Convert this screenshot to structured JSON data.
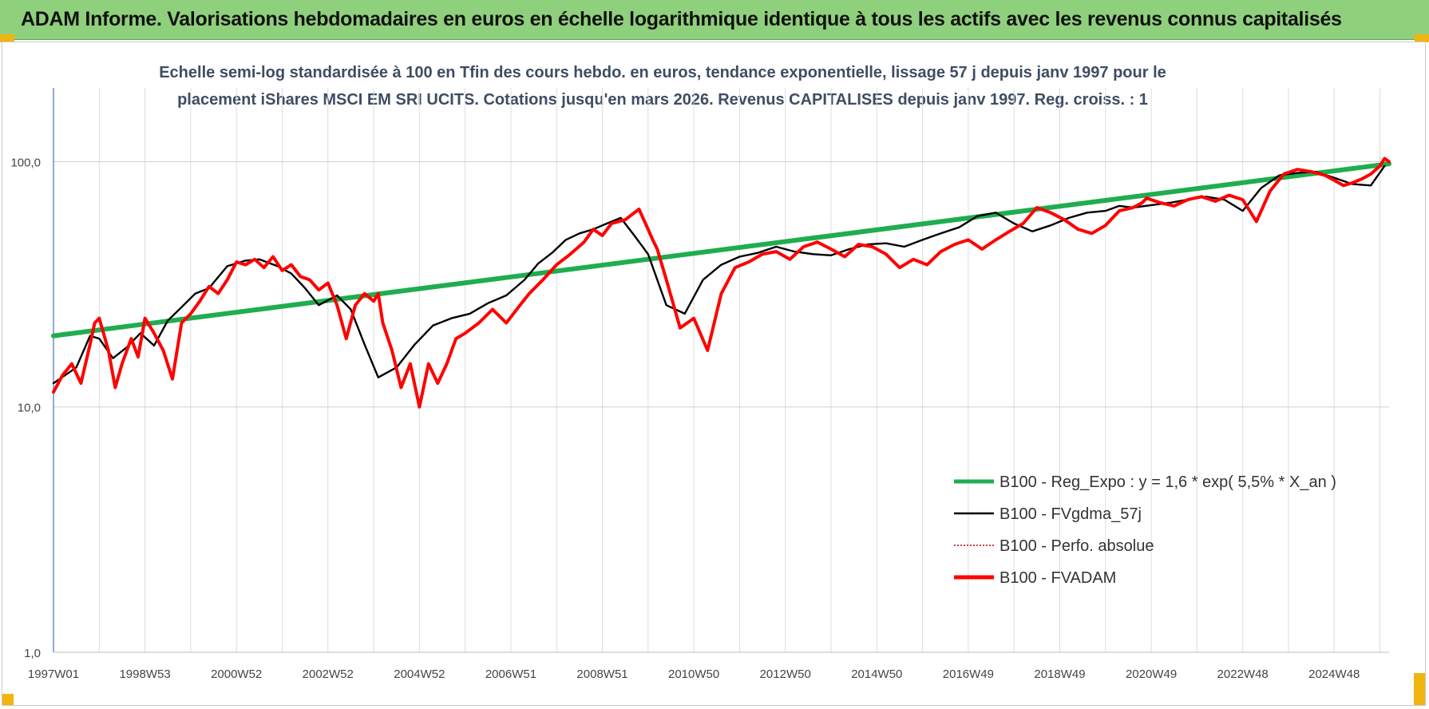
{
  "header": {
    "title": "ADAM Informe. Valorisations hebdomadaires en euros en échelle logarithmique identique à tous les actifs avec les revenus connus capitalisés"
  },
  "chart_data": {
    "type": "line",
    "subtitle_lines": [
      "Echelle semi-log standardisée à 100 en Tfin des cours hebdo. en euros, tendance exponentielle, lissage 57 j depuis janv 1997 pour le",
      "placement iShares MSCI EM SRI UCITS.  Cotations jusqu'en mars 2026. Revenus CAPITALISES depuis janv 1997. Reg. croiss. : 1"
    ],
    "x_axis": {
      "start": 1997.0,
      "end": 2026.2,
      "ticks": [
        {
          "label": "1997W01",
          "x": 1997.0
        },
        {
          "label": "1998W53",
          "x": 1999.0
        },
        {
          "label": "2000W52",
          "x": 2001.0
        },
        {
          "label": "2002W52",
          "x": 2003.0
        },
        {
          "label": "2004W52",
          "x": 2005.0
        },
        {
          "label": "2006W51",
          "x": 2007.0
        },
        {
          "label": "2008W51",
          "x": 2009.0
        },
        {
          "label": "2010W50",
          "x": 2011.0
        },
        {
          "label": "2012W50",
          "x": 2013.0
        },
        {
          "label": "2014W50",
          "x": 2015.0
        },
        {
          "label": "2016W49",
          "x": 2017.0
        },
        {
          "label": "2018W49",
          "x": 2019.0
        },
        {
          "label": "2020W49",
          "x": 2021.0
        },
        {
          "label": "2022W48",
          "x": 2023.0
        },
        {
          "label": "2024W48",
          "x": 2025.0
        }
      ]
    },
    "y_axis": {
      "scale": "log",
      "ylim": [
        1,
        200
      ],
      "ticks": [
        {
          "label": "1,0",
          "value": 1
        },
        {
          "label": "10,0",
          "value": 10
        },
        {
          "label": "100,0",
          "value": 100
        }
      ],
      "grid": true
    },
    "legend": {
      "placement": "bottom-right",
      "entries": [
        {
          "label": "B100 - Reg_Expo : y = 1,6 * exp( 5,5% *  X_an )",
          "color": "#1fad4f",
          "style": "solid-thick"
        },
        {
          "label": "B100 - FVgdma_57j",
          "color": "#000000",
          "style": "solid"
        },
        {
          "label": "B100 - Perfo. absolue",
          "color": "#c00000",
          "style": "dotted"
        },
        {
          "label": "B100 - FVADAM",
          "color": "#ff0000",
          "style": "solid-thick"
        }
      ]
    },
    "series": [
      {
        "key": "reg_expo",
        "color": "#1fad4f",
        "x": [
          1997.0,
          2026.2
        ],
        "values": [
          19.5,
          98
        ]
      },
      {
        "key": "fvgdma",
        "color": "#000000",
        "x": [
          1997.0,
          1997.5,
          1997.8,
          1998.0,
          1998.3,
          1998.6,
          1998.9,
          1999.2,
          1999.5,
          1999.8,
          2000.1,
          2000.4,
          2000.8,
          2001.2,
          2001.5,
          2001.9,
          2002.2,
          2002.5,
          2002.8,
          2003.2,
          2003.5,
          2003.8,
          2004.1,
          2004.5,
          2004.9,
          2005.3,
          2005.7,
          2006.1,
          2006.5,
          2006.9,
          2007.3,
          2007.6,
          2007.9,
          2008.2,
          2008.5,
          2008.8,
          2009.1,
          2009.4,
          2009.7,
          2010.0,
          2010.4,
          2010.8,
          2011.2,
          2011.6,
          2012.0,
          2012.4,
          2012.8,
          2013.2,
          2013.6,
          2014.0,
          2014.4,
          2014.8,
          2015.2,
          2015.6,
          2016.0,
          2016.4,
          2016.8,
          2017.2,
          2017.6,
          2018.0,
          2018.4,
          2018.8,
          2019.2,
          2019.6,
          2020.0,
          2020.3,
          2020.6,
          2021.0,
          2021.4,
          2021.8,
          2022.2,
          2022.6,
          2023.0,
          2023.4,
          2023.8,
          2024.2,
          2024.6,
          2025.0,
          2025.4,
          2025.8,
          2026.1
        ],
        "values": [
          12.5,
          14.5,
          19.5,
          19,
          15.8,
          17.5,
          20,
          17.8,
          22.5,
          25.5,
          29,
          30.5,
          37.5,
          39.5,
          40,
          37.5,
          35,
          30.5,
          26,
          28.5,
          25,
          18,
          13.2,
          14.5,
          18,
          21.5,
          23,
          24,
          26.5,
          28.5,
          33,
          38.5,
          42.5,
          48,
          51,
          53,
          56,
          59,
          50,
          42,
          26,
          24,
          33,
          38,
          41,
          42.5,
          45,
          43,
          42,
          41.5,
          44,
          46,
          46.5,
          45,
          48,
          51,
          54,
          60,
          62,
          56,
          52,
          55,
          59,
          62,
          63,
          66,
          65,
          66.5,
          68,
          70,
          72,
          70,
          63,
          78,
          88,
          90,
          91,
          86,
          81,
          80,
          96
        ]
      },
      {
        "key": "fvadam",
        "color": "#ff0000",
        "x": [
          1997.0,
          1997.2,
          1997.4,
          1997.6,
          1997.8,
          1997.9,
          1998.0,
          1998.2,
          1998.35,
          1998.5,
          1998.7,
          1998.85,
          1999.0,
          1999.2,
          1999.4,
          1999.6,
          1999.8,
          2000.0,
          2000.2,
          2000.4,
          2000.6,
          2000.8,
          2001.0,
          2001.2,
          2001.4,
          2001.6,
          2001.8,
          2002.0,
          2002.2,
          2002.4,
          2002.6,
          2002.8,
          2003.0,
          2003.2,
          2003.4,
          2003.6,
          2003.8,
          2004.0,
          2004.1,
          2004.2,
          2004.4,
          2004.6,
          2004.8,
          2005.0,
          2005.2,
          2005.4,
          2005.6,
          2005.8,
          2006.0,
          2006.3,
          2006.6,
          2006.9,
          2007.2,
          2007.4,
          2007.7,
          2008.0,
          2008.3,
          2008.6,
          2008.8,
          2009.0,
          2009.2,
          2009.5,
          2009.8,
          2010.0,
          2010.1,
          2010.2,
          2010.4,
          2010.7,
          2011.0,
          2011.3,
          2011.6,
          2011.9,
          2012.2,
          2012.5,
          2012.8,
          2013.1,
          2013.4,
          2013.7,
          2014.0,
          2014.3,
          2014.6,
          2014.9,
          2015.2,
          2015.5,
          2015.8,
          2016.1,
          2016.4,
          2016.7,
          2017.0,
          2017.3,
          2017.6,
          2017.9,
          2018.2,
          2018.5,
          2018.8,
          2019.1,
          2019.4,
          2019.7,
          2020.0,
          2020.3,
          2020.6,
          2020.8,
          2020.9,
          2021.2,
          2021.5,
          2021.8,
          2022.1,
          2022.4,
          2022.7,
          2023.0,
          2023.3,
          2023.6,
          2023.9,
          2024.2,
          2024.5,
          2024.8,
          2025.0,
          2025.2,
          2025.4,
          2025.6,
          2025.8,
          2026.0,
          2026.1,
          2026.2
        ],
        "values": [
          11.5,
          13.5,
          15,
          12.5,
          18,
          22,
          23,
          17,
          12,
          15,
          19,
          16,
          23,
          20,
          17,
          13,
          22,
          24,
          27,
          31,
          29,
          33,
          39,
          38,
          40,
          37,
          41,
          36,
          38,
          34,
          33,
          30,
          32,
          26,
          19,
          26,
          29,
          27,
          29,
          22,
          17,
          12,
          15,
          10,
          15,
          12.5,
          15,
          19,
          20,
          22,
          25,
          22,
          26,
          29,
          33,
          38,
          42,
          47,
          53,
          50,
          56,
          58,
          64,
          53,
          48,
          44,
          33,
          21,
          23,
          17,
          29,
          37,
          39,
          42,
          43,
          40,
          45,
          47,
          44,
          41,
          46,
          45,
          42,
          37,
          40,
          38,
          43,
          46,
          48,
          44,
          48,
          52,
          56,
          65,
          62,
          58,
          53,
          51,
          55,
          63,
          65,
          68,
          71,
          68,
          66,
          70,
          72,
          69,
          73,
          70,
          57,
          76,
          89,
          93,
          91,
          88,
          84,
          80,
          82,
          85,
          89,
          96,
          103,
          100
        ]
      }
    ]
  }
}
